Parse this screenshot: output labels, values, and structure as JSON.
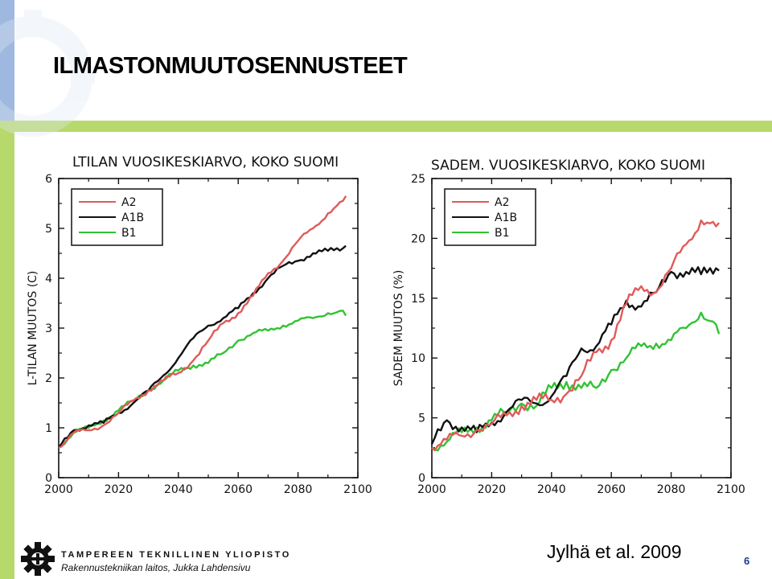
{
  "slide": {
    "title": "ILMASTONMUUTOSENNUSTEET",
    "citation": "Jylhä et al. 2009",
    "page_number": "6",
    "university": "TAMPEREEN TEKNILLINEN YLIOPISTO",
    "department": "Rakennustekniikan laitos, Jukka Lahdensivu"
  },
  "colors": {
    "A2": "#e05a5a",
    "A1B": "#111111",
    "B1": "#33c233",
    "accent_green": "#b7d96b",
    "accent_blue": "#9fb8e0"
  },
  "chart_data": [
    {
      "type": "line",
      "title": "LTILAN VUOSIKESKIARVO, KOKO SUOMI",
      "xlabel": "",
      "ylabel": "L-TILAN MUUTOS (C)",
      "xlim": [
        2000,
        2100
      ],
      "ylim": [
        0,
        6
      ],
      "xticks": [
        "2000",
        "2020",
        "2040",
        "2060",
        "2080",
        "2100"
      ],
      "yticks": [
        "0",
        "1",
        "2",
        "3",
        "4",
        "5",
        "6"
      ],
      "legend_position": "top-left",
      "x": [
        2000,
        2005,
        2010,
        2015,
        2020,
        2025,
        2030,
        2035,
        2040,
        2045,
        2050,
        2055,
        2060,
        2065,
        2070,
        2075,
        2080,
        2085,
        2090,
        2095,
        2096
      ],
      "series": [
        {
          "name": "A2",
          "values": [
            0.6,
            0.9,
            0.95,
            1.05,
            1.3,
            1.55,
            1.75,
            1.95,
            2.1,
            2.35,
            2.75,
            3.1,
            3.3,
            3.65,
            4.1,
            4.35,
            4.75,
            5.0,
            5.3,
            5.55,
            5.65
          ]
        },
        {
          "name": "A1B",
          "values": [
            0.6,
            0.95,
            1.05,
            1.1,
            1.3,
            1.5,
            1.75,
            2.05,
            2.4,
            2.8,
            3.05,
            3.2,
            3.4,
            3.7,
            4.0,
            4.25,
            4.35,
            4.5,
            4.55,
            4.6,
            4.65
          ]
        },
        {
          "name": "B1",
          "values": [
            0.6,
            0.9,
            1.0,
            1.15,
            1.35,
            1.55,
            1.75,
            1.95,
            2.15,
            2.25,
            2.3,
            2.5,
            2.75,
            2.9,
            2.95,
            3.05,
            3.15,
            3.2,
            3.3,
            3.35,
            3.25
          ]
        }
      ]
    },
    {
      "type": "line",
      "title": "SADEM. VUOSIKESKIARVO, KOKO SUOMI",
      "xlabel": "",
      "ylabel": "SADEM MUUTOS (%)",
      "xlim": [
        2000,
        2100
      ],
      "ylim": [
        0,
        25
      ],
      "xticks": [
        "2000",
        "2020",
        "2040",
        "2060",
        "2080",
        "2100"
      ],
      "yticks": [
        "0",
        "5",
        "10",
        "15",
        "20",
        "25"
      ],
      "legend_position": "top-left",
      "x": [
        2000,
        2005,
        2010,
        2015,
        2020,
        2025,
        2030,
        2035,
        2040,
        2045,
        2050,
        2055,
        2060,
        2065,
        2070,
        2075,
        2080,
        2085,
        2090,
        2095,
        2096
      ],
      "series": [
        {
          "name": "A2",
          "values": [
            2.5,
            3.2,
            3.5,
            4.0,
            4.5,
            5.2,
            6.0,
            6.5,
            6.5,
            7.0,
            8.5,
            10.5,
            11.5,
            14.5,
            16.0,
            15.5,
            17.5,
            19.5,
            21.5,
            21.0,
            21.3
          ]
        },
        {
          "name": "A1B",
          "values": [
            2.8,
            4.8,
            4.2,
            3.8,
            4.6,
            5.5,
            6.5,
            6.2,
            6.8,
            8.5,
            10.8,
            11.0,
            12.8,
            14.8,
            14.3,
            15.5,
            17.2,
            17.2,
            17.0,
            17.5,
            17.3
          ]
        },
        {
          "name": "B1",
          "values": [
            2.5,
            3.0,
            3.8,
            4.2,
            4.8,
            5.5,
            6.2,
            6.0,
            7.5,
            8.0,
            7.5,
            7.5,
            9.0,
            10.0,
            11.0,
            11.2,
            11.5,
            12.5,
            13.8,
            12.8,
            12.0
          ]
        }
      ]
    }
  ]
}
